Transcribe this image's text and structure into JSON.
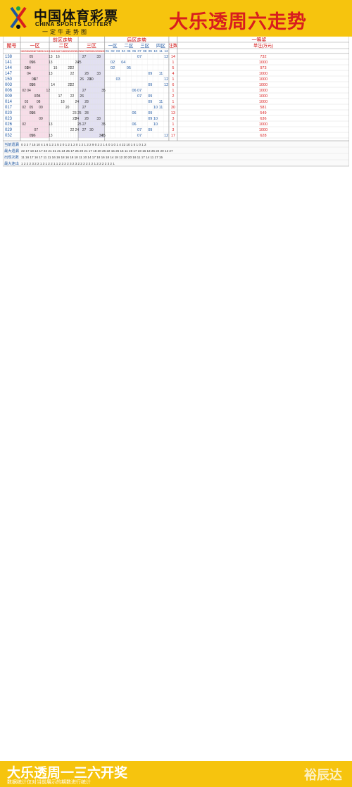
{
  "header": {
    "logo_cn": "中国体育彩票",
    "logo_en": "CHINA SPORTS LOTTERY",
    "logo_sub": "一定牛走势图",
    "title": "大乐透周六走势"
  },
  "table_header": {
    "issue_label": "期号",
    "front_zone_label": "前区走势",
    "zone1": "一区",
    "zone2": "二区",
    "zone3": "三区",
    "back_zone_label": "后区走势",
    "back_sub": [
      "一区",
      "二区",
      "三区",
      "四区"
    ],
    "first_prize": "一等奖",
    "count_label": "注数",
    "amount_label": "单注(万元)"
  },
  "colors": {
    "header_bg": "#f6c40e",
    "zone_pink": "#f8dde8",
    "zone_lavender": "#e2e0f2",
    "number_dark": "#333333",
    "number_red": "#e60012",
    "issue_blue": "#1e56a0",
    "prize_red": "#d81e1e"
  },
  "draws": [
    {
      "issue": "138",
      "front": [
        "05",
        "13",
        "16",
        "27",
        "33"
      ],
      "back": [
        "07",
        "12"
      ],
      "count": "14",
      "amount": "732"
    },
    {
      "issue": "141",
      "front": [
        "05",
        "06",
        "13",
        "24",
        "25"
      ],
      "back": [
        "02",
        "04"
      ],
      "count": "1",
      "amount": "1000"
    },
    {
      "issue": "144",
      "front": [
        "03",
        "04",
        "15",
        "21",
        "22"
      ],
      "back": [
        "02",
        "05"
      ],
      "count": "5",
      "amount": "973"
    },
    {
      "issue": "147",
      "front": [
        "04",
        "13",
        "22",
        "28",
        "33"
      ],
      "back": [
        "09",
        "11"
      ],
      "count": "4",
      "amount": "1000"
    },
    {
      "issue": "150",
      "front": [
        "06",
        "07",
        "26",
        "29",
        "30"
      ],
      "back": [
        "03",
        "12"
      ],
      "count": "1",
      "amount": "1000"
    },
    {
      "issue": "003",
      "front": [
        "05",
        "06",
        "14",
        "21",
        "22"
      ],
      "back": [
        "09",
        "12"
      ],
      "count": "6",
      "amount": "1000"
    },
    {
      "issue": "006",
      "front": [
        "02",
        "04",
        "12",
        "27",
        "35"
      ],
      "back": [
        "06",
        "07"
      ],
      "count": "1",
      "amount": "1000"
    },
    {
      "issue": "009",
      "front": [
        "07",
        "08",
        "17",
        "22",
        "26"
      ],
      "back": [
        "07",
        "09"
      ],
      "count": "2",
      "amount": "1000"
    },
    {
      "issue": "014",
      "front": [
        "03",
        "08",
        "18",
        "24",
        "28"
      ],
      "back": [
        "09",
        "11"
      ],
      "count": "1",
      "amount": "1000"
    },
    {
      "issue": "017",
      "front": [
        "02",
        "05",
        "09",
        "20",
        "27"
      ],
      "back": [
        "10",
        "11"
      ],
      "count": "30",
      "amount": "581"
    },
    {
      "issue": "020",
      "front": [
        "05",
        "06",
        "23",
        "25",
        "28"
      ],
      "back": [
        "06",
        "09"
      ],
      "count": "13",
      "amount": "549"
    },
    {
      "issue": "023",
      "front": [
        "09",
        "23",
        "24",
        "28",
        "33"
      ],
      "back": [
        "09",
        "10"
      ],
      "count": "3",
      "amount": "636"
    },
    {
      "issue": "026",
      "front": [
        "02",
        "13",
        "25",
        "27",
        "35"
      ],
      "back": [
        "06",
        "10"
      ],
      "count": "1",
      "amount": "1000"
    },
    {
      "issue": "029",
      "front": [
        "07",
        "22",
        "24",
        "27",
        "30"
      ],
      "back": [
        "07",
        "09"
      ],
      "count": "3",
      "amount": "1000"
    },
    {
      "issue": "032",
      "front": [
        "05",
        "06",
        "13",
        "34",
        "35"
      ],
      "back": [
        "07",
        "12"
      ],
      "count": "17",
      "amount": "628"
    }
  ],
  "summary_rows": [
    {
      "label": "当前遗漏",
      "values": "0 3 3 7 15 10 4 1 6 1 2 1 5 2 0 1 2 1 2 0 1 2 1 2 2 9 0 2 2 1 4 0 1 0 1 4 22 10 1 5 1 0 1 2"
    },
    {
      "label": "最大遗漏",
      "values": "22 17 19 12 17 22 21 21 21 24 25 17 26 20 21 17 18 20 26 22 15 26 16 11 19 17 23 16 13 26 22 20 12 27"
    },
    {
      "label": "出现次数",
      "values": "11 16 17 16 17 11 11 16 16 18 16 18 18 11 10 14 17 18 16 18 14 18 12 20 20 16 11 17 14 11 17 15"
    },
    {
      "label": "最大连出",
      "values": "1 2 2 2 3 2 2 1 3 1 2 2 1 1 2 2 2 2 3 2 3 2 2 2 2 2 2 1 2 2 2 2 3 2 1"
    }
  ],
  "footer": {
    "title": "大乐透周一三六开奖",
    "note": "数据统计仅对当前展示的期数进行统计",
    "brand": "裕辰达"
  }
}
